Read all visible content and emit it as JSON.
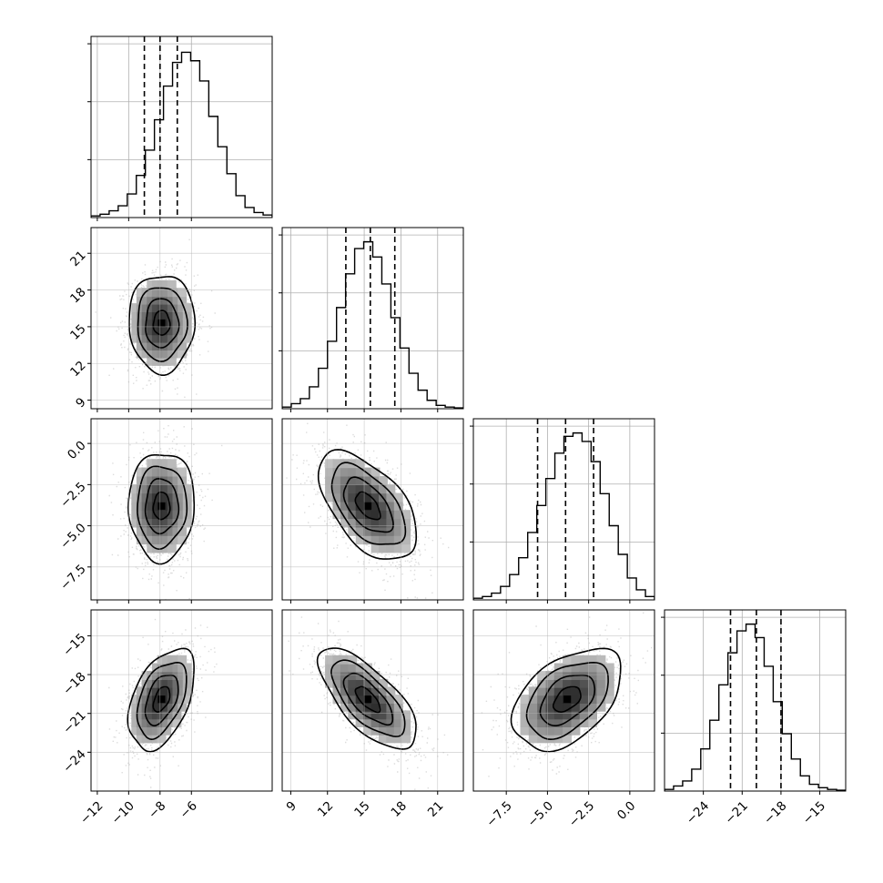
{
  "chart_data": {
    "type": "corner",
    "parameters": [
      {
        "range": [
          -12.4,
          -0.85
        ],
        "ticks": [
          -12,
          -10,
          -8,
          -6
        ],
        "tick_labels": [
          "−12",
          "−10",
          "−8",
          "−6"
        ],
        "quantiles": [
          -9,
          -8,
          -6.9
        ],
        "hist": [
          0.01,
          0.02,
          0.04,
          0.07,
          0.14,
          0.25,
          0.4,
          0.58,
          0.78,
          0.92,
          0.98,
          0.93,
          0.81,
          0.6,
          0.42,
          0.26,
          0.13,
          0.06,
          0.03,
          0.015
        ]
      },
      {
        "range": [
          8.3,
          23.1
        ],
        "ticks": [
          9,
          12,
          15,
          18,
          21
        ],
        "tick_labels": [
          "9",
          "12",
          "15",
          "18",
          "21"
        ],
        "quantiles": [
          13.5,
          15.5,
          17.5
        ],
        "hist": [
          0.01,
          0.03,
          0.06,
          0.13,
          0.24,
          0.4,
          0.6,
          0.8,
          0.95,
          0.99,
          0.9,
          0.74,
          0.54,
          0.36,
          0.21,
          0.11,
          0.05,
          0.02,
          0.01,
          0.005
        ]
      },
      {
        "range": [
          -9.5,
          1.5
        ],
        "ticks": [
          -7.5,
          -5.0,
          -2.5,
          0.0
        ],
        "tick_labels": [
          "−7.5",
          "−5.0",
          "−2.5",
          "0.0"
        ],
        "quantiles": [
          -5.6,
          -3.9,
          -2.2
        ],
        "hist": [
          0.01,
          0.02,
          0.04,
          0.08,
          0.15,
          0.25,
          0.4,
          0.56,
          0.72,
          0.87,
          0.97,
          0.99,
          0.94,
          0.82,
          0.63,
          0.44,
          0.27,
          0.13,
          0.06,
          0.02
        ]
      },
      {
        "range": [
          -27.0,
          -13.0
        ],
        "ticks": [
          -24,
          -21,
          -18,
          -15
        ],
        "tick_labels": [
          "−24",
          "−21",
          "−18",
          "−15"
        ],
        "quantiles": [
          -21.9,
          -19.9,
          -18.0
        ],
        "hist": [
          0.01,
          0.03,
          0.06,
          0.13,
          0.25,
          0.42,
          0.63,
          0.82,
          0.95,
          0.99,
          0.91,
          0.74,
          0.53,
          0.34,
          0.19,
          0.09,
          0.04,
          0.02,
          0.01,
          0.005
        ]
      }
    ],
    "correlations": [
      [
        1,
        0,
        0.02,
        0.45
      ],
      [
        0,
        1,
        -0.55,
        -0.7
      ],
      [
        0.02,
        -0.55,
        1,
        0.45
      ],
      [
        0.45,
        -0.7,
        0.45,
        1
      ]
    ],
    "means": [
      -7.9,
      15.3,
      -3.8,
      -19.9
    ],
    "sigmas": [
      1.05,
      2.0,
      1.65,
      1.95
    ],
    "grid": true,
    "xlabels": [
      "",
      "",
      "",
      ""
    ],
    "ylabels": [
      "",
      "",
      "",
      ""
    ]
  }
}
